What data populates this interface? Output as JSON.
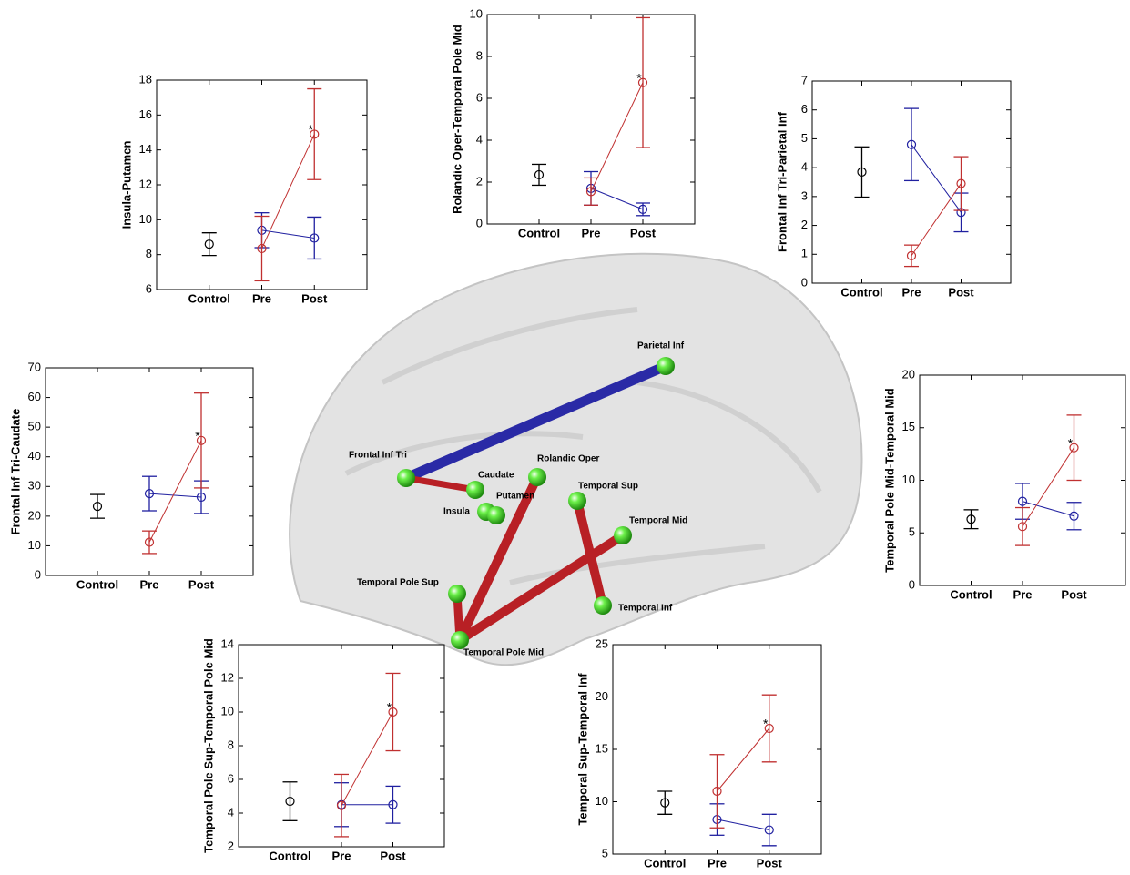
{
  "chart_data": [
    {
      "type": "errorbar",
      "ylabel": "Insula-Putamen",
      "categories": [
        "Control",
        "Pre",
        "Post"
      ],
      "ylim": [
        6,
        18
      ],
      "yticks": [
        6,
        8,
        10,
        12,
        14,
        16,
        18
      ],
      "annotation": "*",
      "series": [
        {
          "color": "#000000",
          "values": [
            8.6,
            null,
            null
          ],
          "errors": [
            0.65,
            null,
            null
          ]
        },
        {
          "color": "#2020a0",
          "values": [
            null,
            9.4,
            8.95
          ],
          "errors": [
            null,
            1.0,
            1.2
          ]
        },
        {
          "color": "#c03030",
          "values": [
            null,
            8.35,
            14.9
          ],
          "errors": [
            null,
            1.85,
            2.6
          ]
        }
      ]
    },
    {
      "type": "errorbar",
      "ylabel": "Rolandic Oper-Temporal Pole Mid",
      "categories": [
        "Control",
        "Pre",
        "Post"
      ],
      "ylim": [
        0,
        10
      ],
      "yticks": [
        0,
        2,
        4,
        6,
        8,
        10
      ],
      "annotation": "*",
      "series": [
        {
          "color": "#000000",
          "values": [
            2.35,
            null,
            null
          ],
          "errors": [
            0.5,
            null,
            null
          ]
        },
        {
          "color": "#2020a0",
          "values": [
            null,
            1.7,
            0.7
          ],
          "errors": [
            null,
            0.8,
            0.3
          ]
        },
        {
          "color": "#c03030",
          "values": [
            null,
            1.55,
            6.75
          ],
          "errors": [
            null,
            0.65,
            3.1
          ]
        }
      ]
    },
    {
      "type": "errorbar",
      "ylabel": "Frontal Inf Tri-Parietal Inf",
      "categories": [
        "Control",
        "Pre",
        "Post"
      ],
      "ylim": [
        0,
        7
      ],
      "yticks": [
        0,
        1,
        2,
        3,
        4,
        5,
        6,
        7
      ],
      "series": [
        {
          "color": "#000000",
          "values": [
            3.85,
            null,
            null
          ],
          "errors": [
            0.87,
            null,
            null
          ]
        },
        {
          "color": "#2020a0",
          "values": [
            null,
            4.8,
            2.45
          ],
          "errors": [
            null,
            1.25,
            0.67
          ]
        },
        {
          "color": "#c03030",
          "values": [
            null,
            0.95,
            3.45
          ],
          "errors": [
            null,
            0.37,
            0.93
          ]
        }
      ]
    },
    {
      "type": "errorbar",
      "ylabel": "Frontal Inf Tri-Caudate",
      "categories": [
        "Control",
        "Pre",
        "Post"
      ],
      "ylim": [
        0,
        70
      ],
      "yticks": [
        0,
        10,
        20,
        30,
        40,
        50,
        60,
        70
      ],
      "annotation": "*",
      "series": [
        {
          "color": "#000000",
          "values": [
            23.3,
            null,
            null
          ],
          "errors": [
            4,
            null,
            null
          ]
        },
        {
          "color": "#2020a0",
          "values": [
            null,
            27.6,
            26.4
          ],
          "errors": [
            null,
            5.8,
            5.5
          ]
        },
        {
          "color": "#c03030",
          "values": [
            null,
            11.2,
            45.5
          ],
          "errors": [
            null,
            3.8,
            16
          ]
        }
      ]
    },
    {
      "type": "errorbar",
      "ylabel": "Temporal Pole Mid-Temporal Mid",
      "categories": [
        "Control",
        "Pre",
        "Post"
      ],
      "ylim": [
        0,
        20
      ],
      "yticks": [
        0,
        5,
        10,
        15,
        20
      ],
      "annotation": "*",
      "series": [
        {
          "color": "#000000",
          "values": [
            6.3,
            null,
            null
          ],
          "errors": [
            0.9,
            null,
            null
          ]
        },
        {
          "color": "#2020a0",
          "values": [
            null,
            8.0,
            6.6
          ],
          "errors": [
            null,
            1.7,
            1.3
          ]
        },
        {
          "color": "#c03030",
          "values": [
            null,
            5.6,
            13.1
          ],
          "errors": [
            null,
            1.8,
            3.1
          ]
        }
      ]
    },
    {
      "type": "errorbar",
      "ylabel": "Temporal Pole Sup-Temporal Pole Mid",
      "categories": [
        "Control",
        "Pre",
        "Post"
      ],
      "ylim": [
        2,
        14
      ],
      "yticks": [
        2,
        4,
        6,
        8,
        10,
        12,
        14
      ],
      "annotation": "*",
      "series": [
        {
          "color": "#000000",
          "values": [
            4.7,
            null,
            null
          ],
          "errors": [
            1.15,
            null,
            null
          ]
        },
        {
          "color": "#2020a0",
          "values": [
            null,
            4.5,
            4.5
          ],
          "errors": [
            null,
            1.3,
            1.1
          ]
        },
        {
          "color": "#c03030",
          "values": [
            null,
            4.45,
            10.0
          ],
          "errors": [
            null,
            1.85,
            2.3
          ]
        }
      ]
    },
    {
      "type": "errorbar",
      "ylabel": "Temporal Sup-Temporal Inf",
      "categories": [
        "Control",
        "Pre",
        "Post"
      ],
      "ylim": [
        5,
        25
      ],
      "yticks": [
        5,
        10,
        15,
        20,
        25
      ],
      "annotation": "*",
      "series": [
        {
          "color": "#000000",
          "values": [
            9.9,
            null,
            null
          ],
          "errors": [
            1.1,
            null,
            null
          ]
        },
        {
          "color": "#2020a0",
          "values": [
            null,
            8.3,
            7.3
          ],
          "errors": [
            null,
            1.5,
            1.5
          ]
        },
        {
          "color": "#c03030",
          "values": [
            null,
            11.0,
            17.0
          ],
          "errors": [
            null,
            3.5,
            3.2
          ]
        }
      ]
    }
  ],
  "brain": {
    "nodes": [
      "Parietal Inf",
      "Frontal Inf Tri",
      "Caudate",
      "Rolandic Oper",
      "Insula",
      "Putamen",
      "Temporal Sup",
      "Temporal Mid",
      "Temporal Pole Sup",
      "Temporal Pole Mid",
      "Temporal Inf"
    ]
  }
}
